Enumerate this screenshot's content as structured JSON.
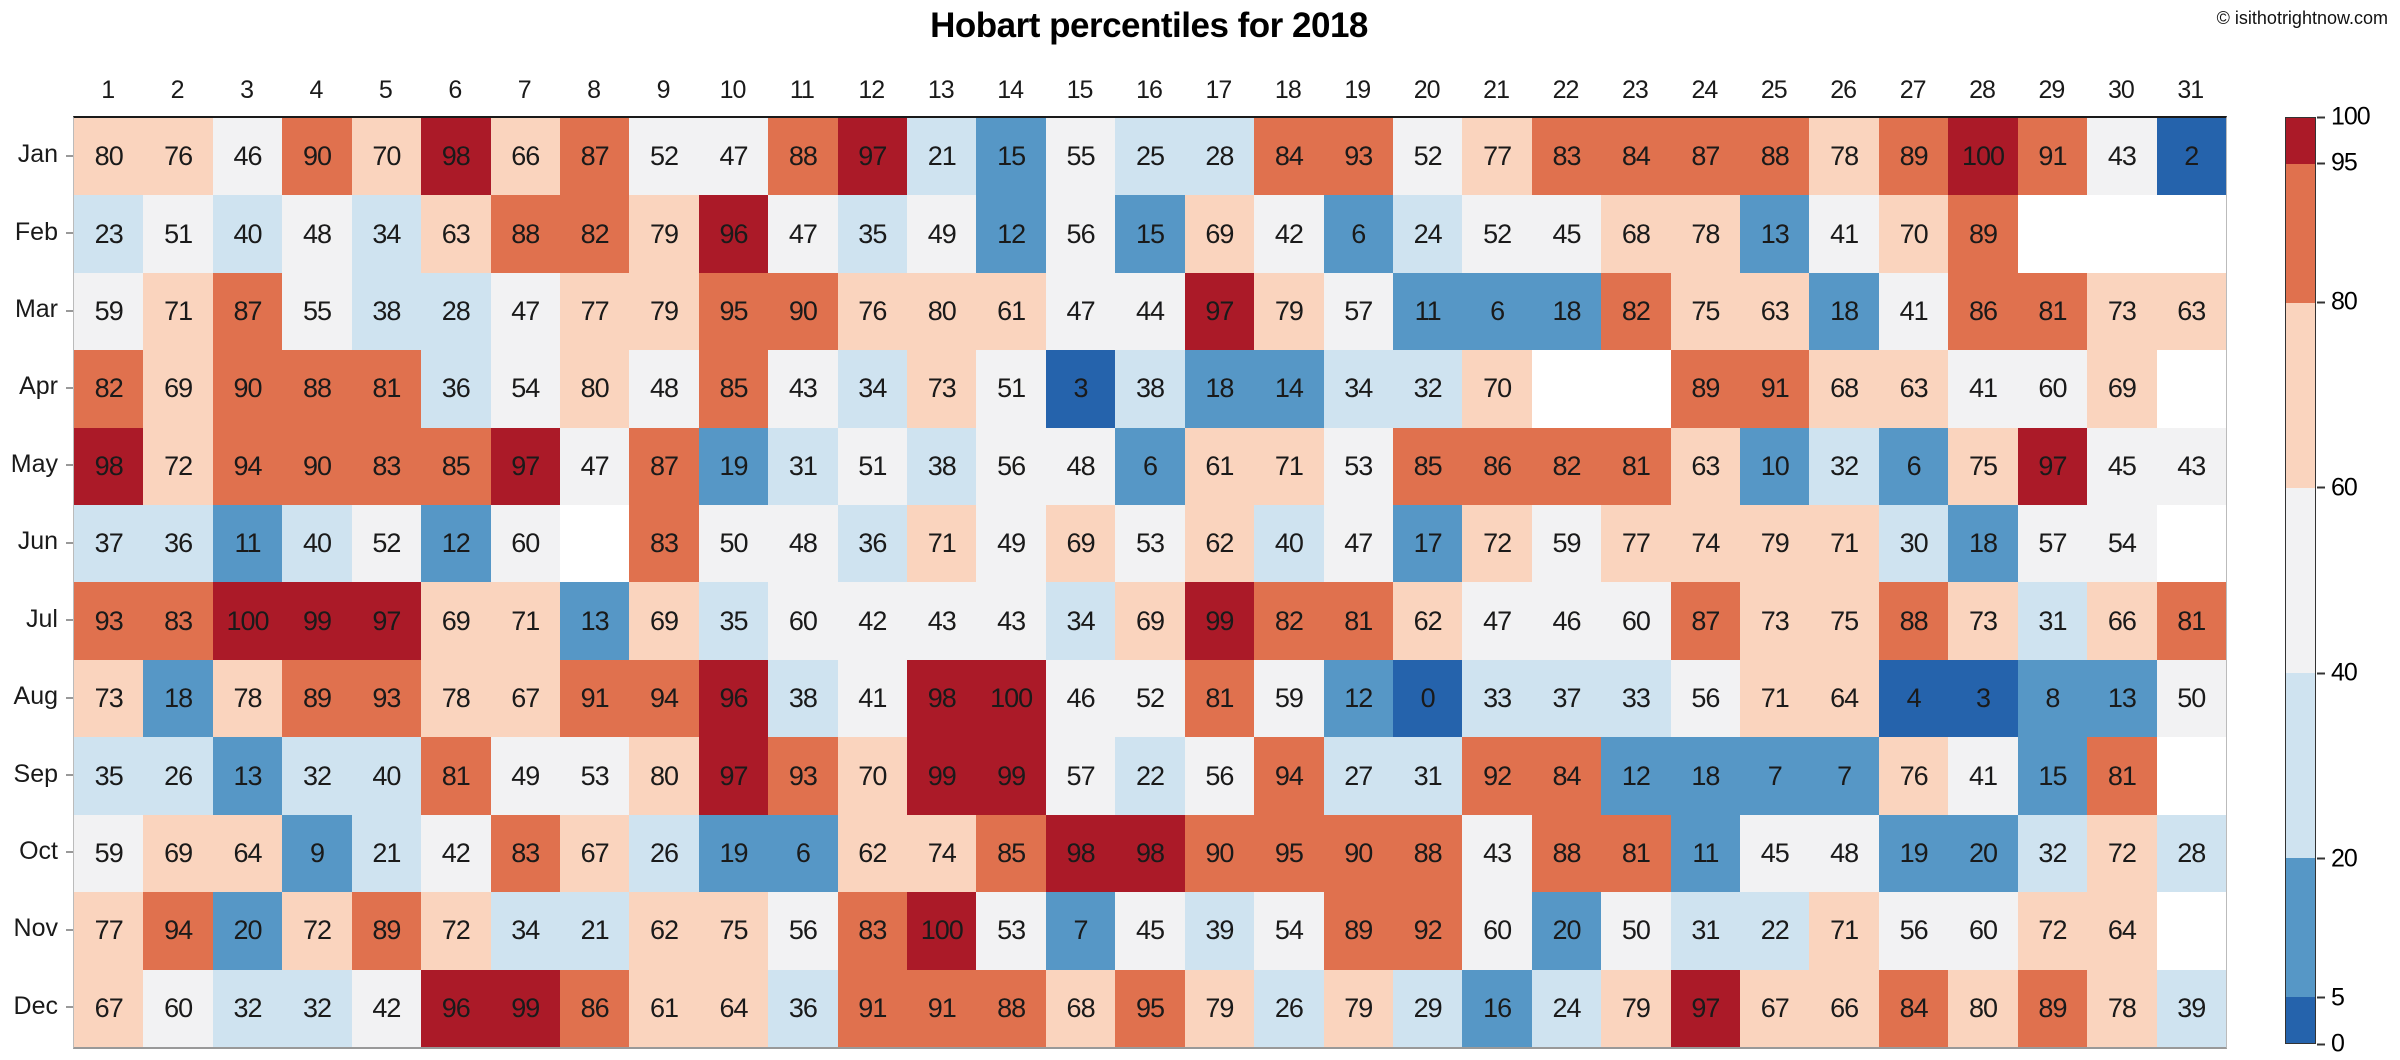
{
  "header": {
    "title": "Hobart percentiles for 2018",
    "watermark": "© isithotrightnow.com"
  },
  "chart_data": {
    "type": "heatmap",
    "title": "Hobart percentiles for 2018",
    "x_axis_position": "top",
    "grid": false,
    "legend_position": "right",
    "columns": [
      "1",
      "2",
      "3",
      "4",
      "5",
      "6",
      "7",
      "8",
      "9",
      "10",
      "11",
      "12",
      "13",
      "14",
      "15",
      "16",
      "17",
      "18",
      "19",
      "20",
      "21",
      "22",
      "23",
      "24",
      "25",
      "26",
      "27",
      "28",
      "29",
      "30",
      "31"
    ],
    "rows": [
      "Jan",
      "Feb",
      "Mar",
      "Apr",
      "May",
      "Jun",
      "Jul",
      "Aug",
      "Sep",
      "Oct",
      "Nov",
      "Dec"
    ],
    "values": [
      [
        80,
        76,
        46,
        90,
        70,
        98,
        66,
        87,
        52,
        47,
        88,
        97,
        21,
        15,
        55,
        25,
        28,
        84,
        93,
        52,
        77,
        83,
        84,
        87,
        88,
        78,
        89,
        100,
        91,
        43,
        2
      ],
      [
        23,
        51,
        40,
        48,
        34,
        63,
        88,
        82,
        79,
        96,
        47,
        35,
        49,
        12,
        56,
        15,
        69,
        42,
        6,
        24,
        52,
        45,
        68,
        78,
        13,
        41,
        70,
        89,
        null,
        null,
        null
      ],
      [
        59,
        71,
        87,
        55,
        38,
        28,
        47,
        77,
        79,
        95,
        90,
        76,
        80,
        61,
        47,
        44,
        97,
        79,
        57,
        11,
        6,
        18,
        82,
        75,
        63,
        18,
        41,
        86,
        81,
        73,
        63
      ],
      [
        82,
        69,
        90,
        88,
        81,
        36,
        54,
        80,
        48,
        85,
        43,
        34,
        73,
        51,
        3,
        38,
        18,
        14,
        34,
        32,
        70,
        null,
        null,
        89,
        91,
        68,
        63,
        41,
        60,
        69,
        null
      ],
      [
        98,
        72,
        94,
        90,
        83,
        85,
        97,
        47,
        87,
        19,
        31,
        51,
        38,
        56,
        48,
        6,
        61,
        71,
        53,
        85,
        86,
        82,
        81,
        63,
        10,
        32,
        6,
        75,
        97,
        45,
        43
      ],
      [
        37,
        36,
        11,
        40,
        52,
        12,
        60,
        null,
        83,
        50,
        48,
        36,
        71,
        49,
        69,
        53,
        62,
        40,
        47,
        17,
        72,
        59,
        77,
        74,
        79,
        71,
        30,
        18,
        57,
        54,
        null
      ],
      [
        93,
        83,
        100,
        99,
        97,
        69,
        71,
        13,
        69,
        35,
        60,
        42,
        43,
        43,
        34,
        69,
        99,
        82,
        81,
        62,
        47,
        46,
        60,
        87,
        73,
        75,
        88,
        73,
        31,
        66,
        81
      ],
      [
        73,
        18,
        78,
        89,
        93,
        78,
        67,
        91,
        94,
        96,
        38,
        41,
        98,
        100,
        46,
        52,
        81,
        59,
        12,
        0,
        33,
        37,
        33,
        56,
        71,
        64,
        4,
        3,
        8,
        13,
        50
      ],
      [
        35,
        26,
        13,
        32,
        40,
        81,
        49,
        53,
        80,
        97,
        93,
        70,
        99,
        99,
        57,
        22,
        56,
        94,
        27,
        31,
        92,
        84,
        12,
        18,
        7,
        7,
        76,
        41,
        15,
        81,
        null
      ],
      [
        59,
        69,
        64,
        9,
        21,
        42,
        83,
        67,
        26,
        19,
        6,
        62,
        74,
        85,
        98,
        98,
        90,
        95,
        90,
        88,
        43,
        88,
        81,
        11,
        45,
        48,
        19,
        20,
        32,
        72,
        28
      ],
      [
        77,
        94,
        20,
        72,
        89,
        72,
        34,
        21,
        62,
        75,
        56,
        83,
        100,
        53,
        7,
        45,
        39,
        54,
        89,
        92,
        60,
        20,
        50,
        31,
        22,
        71,
        56,
        60,
        72,
        64,
        null
      ],
      [
        67,
        60,
        32,
        32,
        42,
        96,
        99,
        86,
        61,
        64,
        36,
        91,
        91,
        88,
        68,
        95,
        79,
        26,
        79,
        29,
        16,
        24,
        79,
        97,
        67,
        66,
        84,
        80,
        89,
        78,
        39
      ]
    ],
    "colorscale": {
      "bounds": [
        0,
        5,
        20,
        40,
        60,
        80,
        95,
        100
      ],
      "colors": [
        "#2563AC",
        "#5697C6",
        "#CFE3F0",
        "#F2F2F3",
        "#FAD4BE",
        "#E0714E",
        "#AB1A28"
      ],
      "missing": "#FFFFFF"
    },
    "colorbar": {
      "min": 0,
      "max": 100,
      "ticks": [
        100,
        95,
        80,
        60,
        40,
        20,
        5,
        0
      ]
    }
  }
}
